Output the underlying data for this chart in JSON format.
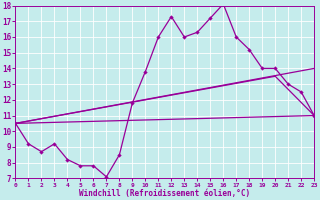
{
  "xlabel": "Windchill (Refroidissement éolien,°C)",
  "xlim": [
    0,
    23
  ],
  "ylim": [
    7,
    18
  ],
  "yticks": [
    7,
    8,
    9,
    10,
    11,
    12,
    13,
    14,
    15,
    16,
    17,
    18
  ],
  "xticks": [
    0,
    1,
    2,
    3,
    4,
    5,
    6,
    7,
    8,
    9,
    10,
    11,
    12,
    13,
    14,
    15,
    16,
    17,
    18,
    19,
    20,
    21,
    22,
    23
  ],
  "background_color": "#c5ecec",
  "line_color": "#990099",
  "line1_x": [
    0,
    1,
    2,
    3,
    4,
    5,
    6,
    7,
    8,
    9,
    10,
    11,
    12,
    13,
    14,
    15,
    16,
    17,
    18,
    19,
    20,
    21,
    22,
    23
  ],
  "line1_y": [
    10.5,
    9.2,
    8.7,
    9.2,
    8.2,
    7.8,
    7.8,
    7.1,
    8.5,
    11.8,
    13.8,
    16.0,
    17.3,
    16.0,
    16.3,
    17.2,
    18.1,
    16.0,
    15.2,
    14.0,
    14.0,
    13.0,
    12.5,
    11.0
  ],
  "line2_x": [
    0,
    23
  ],
  "line2_y": [
    10.5,
    11.0
  ],
  "line3_x": [
    0,
    23
  ],
  "line3_y": [
    10.5,
    14.0
  ],
  "line4_x": [
    0,
    20,
    23
  ],
  "line4_y": [
    10.5,
    13.5,
    11.0
  ],
  "figwidth": 3.2,
  "figheight": 2.0,
  "dpi": 100
}
